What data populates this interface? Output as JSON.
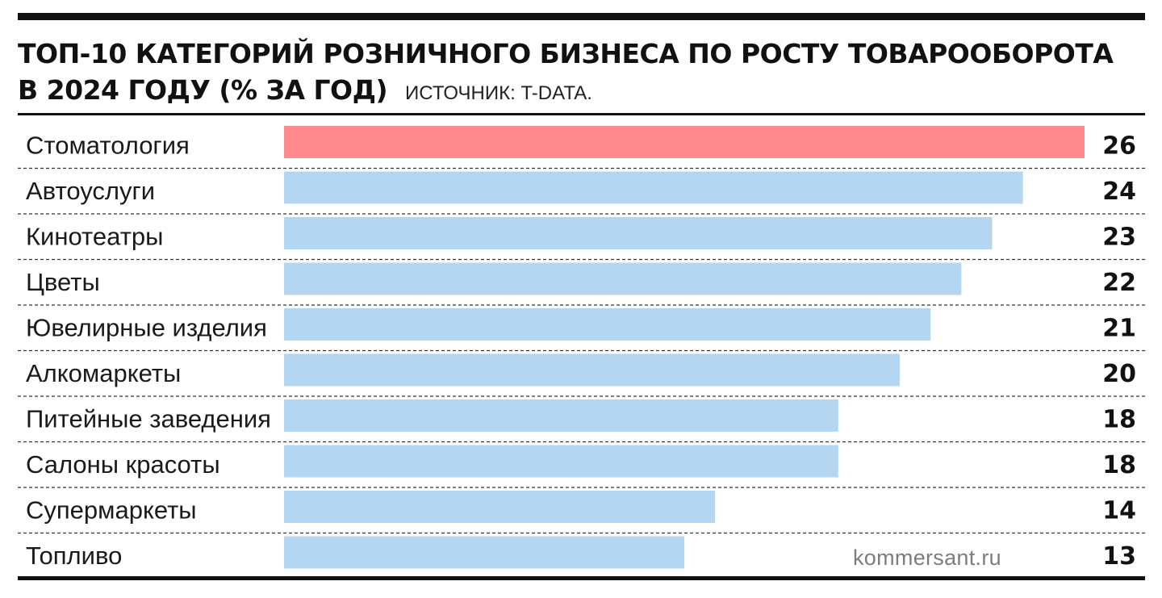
{
  "header": {
    "title_line1": "ТОП-10 КАТЕГОРИЙ РОЗНИЧНОГО БИЗНЕСА ПО РОСТУ ТОВАРООБОРОТА",
    "title_line2": "В 2024 ГОДУ (% ЗА ГОД)",
    "source": "ИСТОЧНИК: T-DATA."
  },
  "watermark": "kommersant.ru",
  "colors": {
    "highlight_bar": "#fc8a8e",
    "bar": "#b5d6f1",
    "text": "#111111",
    "rule": "#111111"
  },
  "chart_data": {
    "type": "bar",
    "orientation": "horizontal",
    "title": "ТОП-10 КАТЕГОРИЙ РОЗНИЧНОГО БИЗНЕСА ПО РОСТУ ТОВАРООБОРОТА В 2024 ГОДУ (% ЗА ГОД)",
    "categories": [
      "Стоматология",
      "Автоуслуги",
      "Кинотеатры",
      "Цветы",
      "Ювелирные изделия",
      "Алкомаркеты",
      "Питейные заведения",
      "Салоны красоты",
      "Супермаркеты",
      "Топливо"
    ],
    "values": [
      26,
      24,
      23,
      22,
      21,
      20,
      18,
      18,
      14,
      13
    ],
    "highlighted": [
      "Стоматология"
    ],
    "xlim": [
      0,
      26
    ],
    "grid": false,
    "data_labels": true
  }
}
